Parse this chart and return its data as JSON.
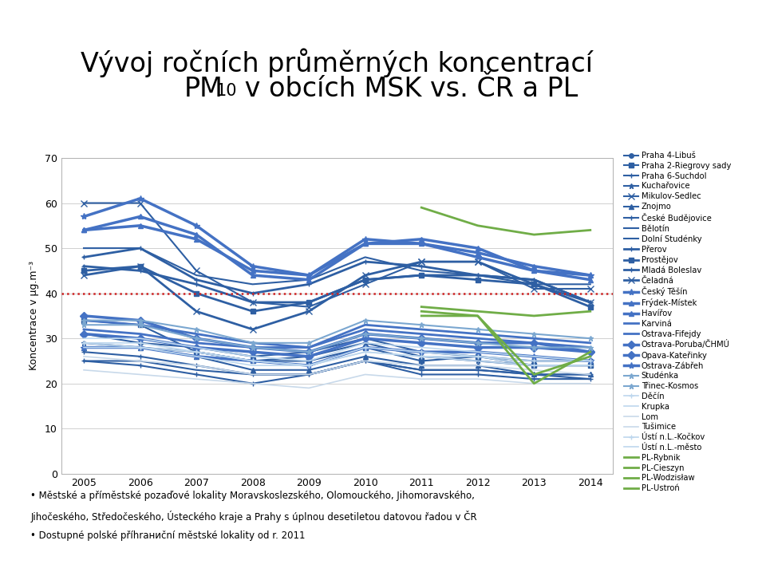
{
  "years": [
    2005,
    2006,
    2007,
    2008,
    2009,
    2010,
    2011,
    2012,
    2013,
    2014
  ],
  "ylabel": "Koncentrace v μg.m⁻³",
  "ylim": [
    0,
    70
  ],
  "yticks": [
    0,
    10,
    20,
    30,
    40,
    50,
    60,
    70
  ],
  "dotted_line_y": 40,
  "footnote_line1": "• Městské a příměstské pozaďové lokality Moravskoslezského, Olomouckého, Jihomoravského,",
  "footnote_line2": "Jihočeského, Středočeského, Ústeckého kraje a Prahy s úplnou desetiletou datovou řadou v ČR",
  "footnote_line3": "• Dostupné polské příhrаниční městské lokality od r. 2011",
  "header_bar_color": "#1E90FF",
  "series": [
    {
      "name": "Praha 4-Libuš",
      "color": "#2E5FA3",
      "marker": "o",
      "lw": 1.5,
      "ms": 4,
      "values": [
        31,
        29,
        28,
        26,
        27,
        30,
        27,
        26,
        25,
        25
      ]
    },
    {
      "name": "Praha 2-Riegrovy sady",
      "color": "#2E5FA3",
      "marker": "s",
      "lw": 1.5,
      "ms": 4,
      "values": [
        34,
        33,
        27,
        25,
        25,
        28,
        25,
        26,
        24,
        24
      ]
    },
    {
      "name": "Praha 6-Suchdol",
      "color": "#2E5FA3",
      "marker": "+",
      "lw": 1.5,
      "ms": 5,
      "values": [
        25,
        24,
        22,
        20,
        22,
        25,
        22,
        22,
        21,
        21
      ]
    },
    {
      "name": "Kuchařovice",
      "color": "#2E5FA3",
      "marker": "*",
      "lw": 1.5,
      "ms": 5,
      "values": [
        29,
        28,
        27,
        25,
        26,
        29,
        26,
        25,
        24,
        24
      ]
    },
    {
      "name": "Mikulov-Sedlec",
      "color": "#2E5FA3",
      "marker": "x",
      "lw": 1.5,
      "ms": 6,
      "values": [
        60,
        60,
        45,
        38,
        37,
        42,
        47,
        47,
        41,
        41
      ]
    },
    {
      "name": "Znojmo",
      "color": "#2E5FA3",
      "marker": "^",
      "lw": 1.5,
      "ms": 4,
      "values": [
        28,
        28,
        26,
        23,
        23,
        26,
        24,
        24,
        22,
        22
      ]
    },
    {
      "name": "České Budějovice",
      "color": "#2E5FA3",
      "marker": "+",
      "lw": 1.5,
      "ms": 5,
      "values": [
        27,
        26,
        24,
        22,
        22,
        25,
        23,
        23,
        22,
        22
      ]
    },
    {
      "name": "Bělotín",
      "color": "#2E5FA3",
      "marker": "None",
      "lw": 1.5,
      "ms": 0,
      "values": [
        50,
        50,
        44,
        42,
        43,
        48,
        45,
        44,
        42,
        42
      ]
    },
    {
      "name": "Dolní Studénky",
      "color": "#2E5FA3",
      "marker": "None",
      "lw": 1.5,
      "ms": 0,
      "values": [
        25,
        25,
        23,
        22,
        22,
        25,
        23,
        23,
        22,
        21
      ]
    },
    {
      "name": "Přerov",
      "color": "#2E5FA3",
      "marker": "+",
      "lw": 2.0,
      "ms": 5,
      "values": [
        48,
        50,
        43,
        40,
        42,
        47,
        46,
        44,
        43,
        38
      ]
    },
    {
      "name": "Prostějov",
      "color": "#2E5FA3",
      "marker": "s",
      "lw": 2.0,
      "ms": 5,
      "values": [
        45,
        46,
        40,
        36,
        38,
        43,
        44,
        43,
        42,
        37
      ]
    },
    {
      "name": "Mladá Boleslav",
      "color": "#2E5FA3",
      "marker": "+",
      "lw": 2.0,
      "ms": 5,
      "values": [
        46,
        45,
        42,
        38,
        38,
        43,
        44,
        44,
        43,
        38
      ]
    },
    {
      "name": "Čeladná",
      "color": "#2E5FA3",
      "marker": "x",
      "lw": 2.0,
      "ms": 6,
      "values": [
        44,
        46,
        36,
        32,
        36,
        44,
        47,
        47,
        42,
        38
      ]
    },
    {
      "name": "Český Těšín",
      "color": "#4472C4",
      "marker": "*",
      "lw": 2.5,
      "ms": 6,
      "values": [
        57,
        61,
        55,
        46,
        44,
        52,
        51,
        48,
        45,
        44
      ]
    },
    {
      "name": "Frýdek-Místek",
      "color": "#4472C4",
      "marker": "^",
      "lw": 2.5,
      "ms": 5,
      "values": [
        54,
        57,
        53,
        44,
        43,
        51,
        51,
        49,
        46,
        44
      ]
    },
    {
      "name": "Havířov",
      "color": "#4472C4",
      "marker": "^",
      "lw": 2.5,
      "ms": 5,
      "values": [
        54,
        55,
        52,
        45,
        44,
        51,
        52,
        50,
        45,
        43
      ]
    },
    {
      "name": "Karviná",
      "color": "#4472C4",
      "marker": "None",
      "lw": 2.0,
      "ms": 0,
      "values": [
        34,
        33,
        31,
        29,
        28,
        33,
        32,
        31,
        30,
        29
      ]
    },
    {
      "name": "Ostrava-Fifejdy",
      "color": "#4472C4",
      "marker": "None",
      "lw": 2.0,
      "ms": 0,
      "values": [
        32,
        31,
        29,
        28,
        28,
        32,
        31,
        30,
        29,
        28
      ]
    },
    {
      "name": "Ostrava-Poruba/ČHMÚ",
      "color": "#4472C4",
      "marker": "D",
      "lw": 2.5,
      "ms": 5,
      "values": [
        35,
        34,
        30,
        28,
        27,
        31,
        30,
        29,
        29,
        27
      ]
    },
    {
      "name": "Opava-Kateřinky",
      "color": "#4472C4",
      "marker": "D",
      "lw": 2.5,
      "ms": 5,
      "values": [
        31,
        30,
        28,
        27,
        26,
        30,
        29,
        28,
        28,
        27
      ]
    },
    {
      "name": "Ostrava-Zábřeh",
      "color": "#4472C4",
      "marker": "*",
      "lw": 2.5,
      "ms": 6,
      "values": [
        28,
        28,
        26,
        25,
        24,
        28,
        27,
        27,
        26,
        25
      ]
    },
    {
      "name": "Studénka",
      "color": "#7BA7D0",
      "marker": "*",
      "lw": 1.5,
      "ms": 5,
      "values": [
        33,
        33,
        30,
        28,
        27,
        31,
        30,
        29,
        28,
        28
      ]
    },
    {
      "name": "Třinec-Kosmos",
      "color": "#7BA7D0",
      "marker": "*",
      "lw": 1.5,
      "ms": 5,
      "values": [
        34,
        34,
        32,
        29,
        29,
        34,
        33,
        32,
        31,
        30
      ]
    },
    {
      "name": "Děčín",
      "color": "#BDD7EE",
      "marker": "+",
      "lw": 1.2,
      "ms": 4,
      "values": [
        29,
        29,
        27,
        25,
        24,
        27,
        26,
        26,
        24,
        24
      ]
    },
    {
      "name": "Krupka",
      "color": "#BDD7EE",
      "marker": "None",
      "lw": 1.2,
      "ms": 0,
      "values": [
        28,
        28,
        26,
        24,
        24,
        27,
        26,
        25,
        24,
        24
      ]
    },
    {
      "name": "Lom",
      "color": "#C8D9EA",
      "marker": "None",
      "lw": 1.2,
      "ms": 0,
      "values": [
        26,
        25,
        24,
        22,
        22,
        25,
        24,
        24,
        23,
        22
      ]
    },
    {
      "name": "Tušimice",
      "color": "#C8D9EA",
      "marker": "None",
      "lw": 1.2,
      "ms": 0,
      "values": [
        23,
        22,
        21,
        20,
        19,
        22,
        21,
        21,
        20,
        20
      ]
    },
    {
      "name": "Ústí n.L.-Kočkov",
      "color": "#BDD7EE",
      "marker": "+",
      "lw": 1.2,
      "ms": 4,
      "values": [
        29,
        28,
        27,
        25,
        24,
        28,
        27,
        26,
        25,
        25
      ]
    },
    {
      "name": "Ústí n.L.-město",
      "color": "#BDD7EE",
      "marker": "None",
      "lw": 1.2,
      "ms": 0,
      "values": [
        30,
        30,
        28,
        26,
        25,
        29,
        28,
        27,
        26,
        25
      ]
    },
    {
      "name": "PL-Rybnik",
      "color": "#70AD47",
      "marker": "None",
      "lw": 2.0,
      "ms": 0,
      "values": [
        null,
        null,
        null,
        null,
        null,
        null,
        59,
        55,
        53,
        54
      ]
    },
    {
      "name": "PL-Cieszyn",
      "color": "#70AD47",
      "marker": "None",
      "lw": 2.0,
      "ms": 0,
      "values": [
        null,
        null,
        null,
        null,
        null,
        null,
        37,
        36,
        35,
        36
      ]
    },
    {
      "name": "PL-Wodzisław",
      "color": "#70AD47",
      "marker": "None",
      "lw": 2.0,
      "ms": 0,
      "values": [
        null,
        null,
        null,
        null,
        null,
        null,
        36,
        35,
        20,
        27
      ]
    },
    {
      "name": "PL-Ustroń",
      "color": "#70AD47",
      "marker": "None",
      "lw": 2.0,
      "ms": 0,
      "values": [
        null,
        null,
        null,
        null,
        null,
        null,
        35,
        35,
        22,
        26
      ]
    }
  ],
  "background_color": "#FFFFFF",
  "grid_color": "#D0D0D0"
}
